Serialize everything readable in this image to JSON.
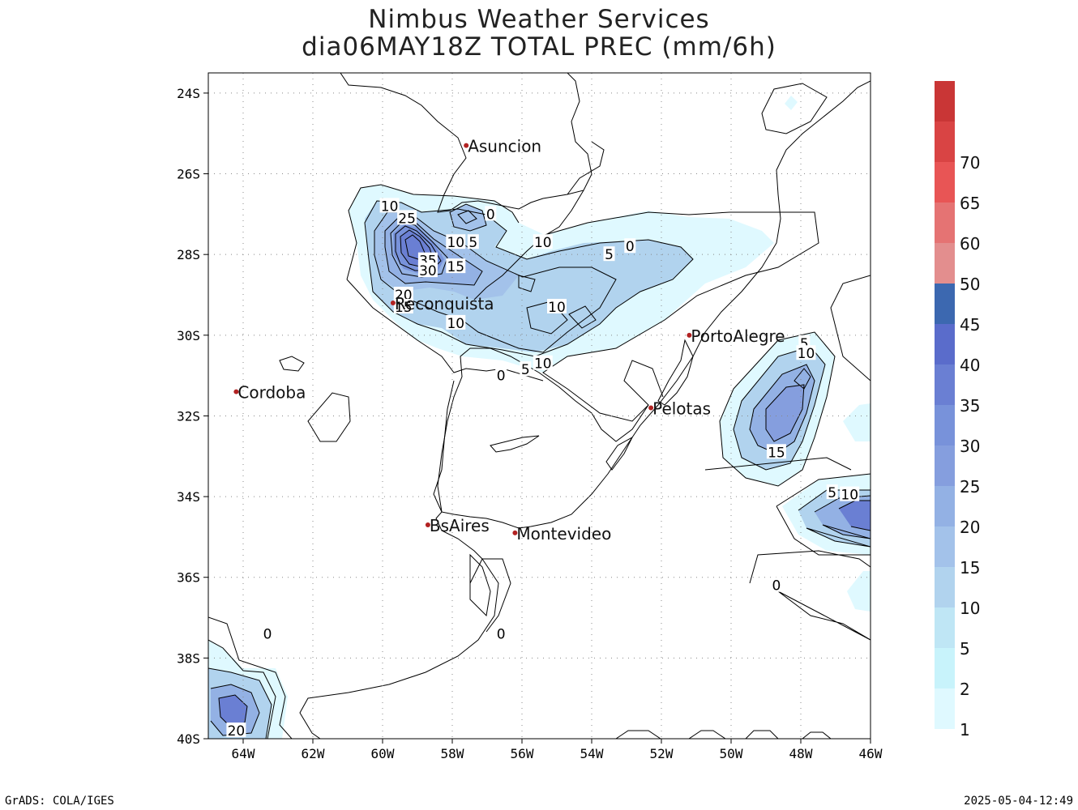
{
  "header": {
    "title_line1": "Nimbus Weather Services",
    "title_line2": "dia06MAY18Z TOTAL PREC (mm/6h)"
  },
  "map": {
    "lon_range": [
      -65,
      -46
    ],
    "lat_range": [
      -40,
      -23.5
    ],
    "lat_ticks": [
      {
        "value": -24,
        "label": "24S"
      },
      {
        "value": -26,
        "label": "26S"
      },
      {
        "value": -28,
        "label": "28S"
      },
      {
        "value": -30,
        "label": "30S"
      },
      {
        "value": -32,
        "label": "32S"
      },
      {
        "value": -34,
        "label": "34S"
      },
      {
        "value": -36,
        "label": "36S"
      },
      {
        "value": -38,
        "label": "38S"
      },
      {
        "value": -40,
        "label": "40S"
      }
    ],
    "lon_ticks": [
      {
        "value": -64,
        "label": "64W"
      },
      {
        "value": -62,
        "label": "62W"
      },
      {
        "value": -60,
        "label": "60W"
      },
      {
        "value": -58,
        "label": "58W"
      },
      {
        "value": -56,
        "label": "56W"
      },
      {
        "value": -54,
        "label": "54W"
      },
      {
        "value": -52,
        "label": "52W"
      },
      {
        "value": -50,
        "label": "50W"
      },
      {
        "value": -48,
        "label": "48W"
      },
      {
        "value": -46,
        "label": "46W"
      }
    ],
    "grid": true,
    "cities": [
      {
        "name": "Asuncion",
        "lon": -57.6,
        "lat": -25.3
      },
      {
        "name": "Reconquista",
        "lon": -59.7,
        "lat": -29.2
      },
      {
        "name": "Cordoba",
        "lon": -64.2,
        "lat": -31.4
      },
      {
        "name": "PortoAlegre",
        "lon": -51.2,
        "lat": -30.0
      },
      {
        "name": "Pelotas",
        "lon": -52.3,
        "lat": -31.8
      },
      {
        "name": "BsAires",
        "lon": -58.7,
        "lat": -34.7
      },
      {
        "name": "Montevideo",
        "lon": -56.2,
        "lat": -34.9
      }
    ],
    "contour_labels": [
      {
        "text": "10",
        "lon": -59.8,
        "lat": -26.8
      },
      {
        "text": "25",
        "lon": -59.3,
        "lat": -27.1
      },
      {
        "text": "0",
        "lon": -56.9,
        "lat": -27.0
      },
      {
        "text": "10",
        "lon": -57.9,
        "lat": -27.7
      },
      {
        "text": "5",
        "lon": -57.4,
        "lat": -27.7
      },
      {
        "text": "10",
        "lon": -55.4,
        "lat": -27.7
      },
      {
        "text": "0",
        "lon": -52.9,
        "lat": -27.8
      },
      {
        "text": "5",
        "lon": -53.5,
        "lat": -28.0
      },
      {
        "text": "35",
        "lon": -58.7,
        "lat": -28.15
      },
      {
        "text": "30",
        "lon": -58.7,
        "lat": -28.4
      },
      {
        "text": "15",
        "lon": -57.9,
        "lat": -28.3
      },
      {
        "text": "20",
        "lon": -59.4,
        "lat": -29.0
      },
      {
        "text": "15",
        "lon": -59.4,
        "lat": -29.3
      },
      {
        "text": "10",
        "lon": -55.0,
        "lat": -29.3
      },
      {
        "text": "10",
        "lon": -57.9,
        "lat": -29.7
      },
      {
        "text": "10",
        "lon": -55.4,
        "lat": -30.7
      },
      {
        "text": "5",
        "lon": -55.9,
        "lat": -30.85
      },
      {
        "text": "0",
        "lon": -56.6,
        "lat": -31.0
      },
      {
        "text": "5",
        "lon": -47.9,
        "lat": -30.2
      },
      {
        "text": "10",
        "lon": -47.85,
        "lat": -30.45
      },
      {
        "text": "15",
        "lon": -48.7,
        "lat": -32.9
      },
      {
        "text": "5",
        "lon": -47.1,
        "lat": -33.9
      },
      {
        "text": "10",
        "lon": -46.6,
        "lat": -33.95
      },
      {
        "text": "0",
        "lon": -48.7,
        "lat": -36.2
      },
      {
        "text": "0",
        "lon": -63.3,
        "lat": -37.4
      },
      {
        "text": "0",
        "lon": -56.6,
        "lat": -37.4
      },
      {
        "text": "20",
        "lon": -64.2,
        "lat": -39.8
      }
    ]
  },
  "colorbar": {
    "levels": [
      "1",
      "2",
      "5",
      "10",
      "15",
      "20",
      "25",
      "30",
      "35",
      "40",
      "45",
      "50",
      "60",
      "65",
      "70"
    ],
    "colors": [
      "#dff9ff",
      "#c8f3fb",
      "#bfe6f5",
      "#b1d3ee",
      "#a3c2ea",
      "#93b1e4",
      "#859ede",
      "#7892da",
      "#6a7fd3",
      "#5a6ccb",
      "#3c68b0",
      "#e38e8e",
      "#e57373",
      "#e85555",
      "#d94444",
      "#c93636"
    ]
  },
  "shading_colors": {
    "c0": "#dff9ff",
    "c1": "#c8f3fb",
    "c2": "#b1d3ee",
    "c3": "#a3c2ea",
    "c4": "#93b1e4",
    "c5": "#859ede",
    "c6": "#7892da",
    "c7": "#6a7fd3"
  },
  "footer": {
    "left": "GrADS: COLA/IGES",
    "right": "2025-05-04-12:49"
  }
}
